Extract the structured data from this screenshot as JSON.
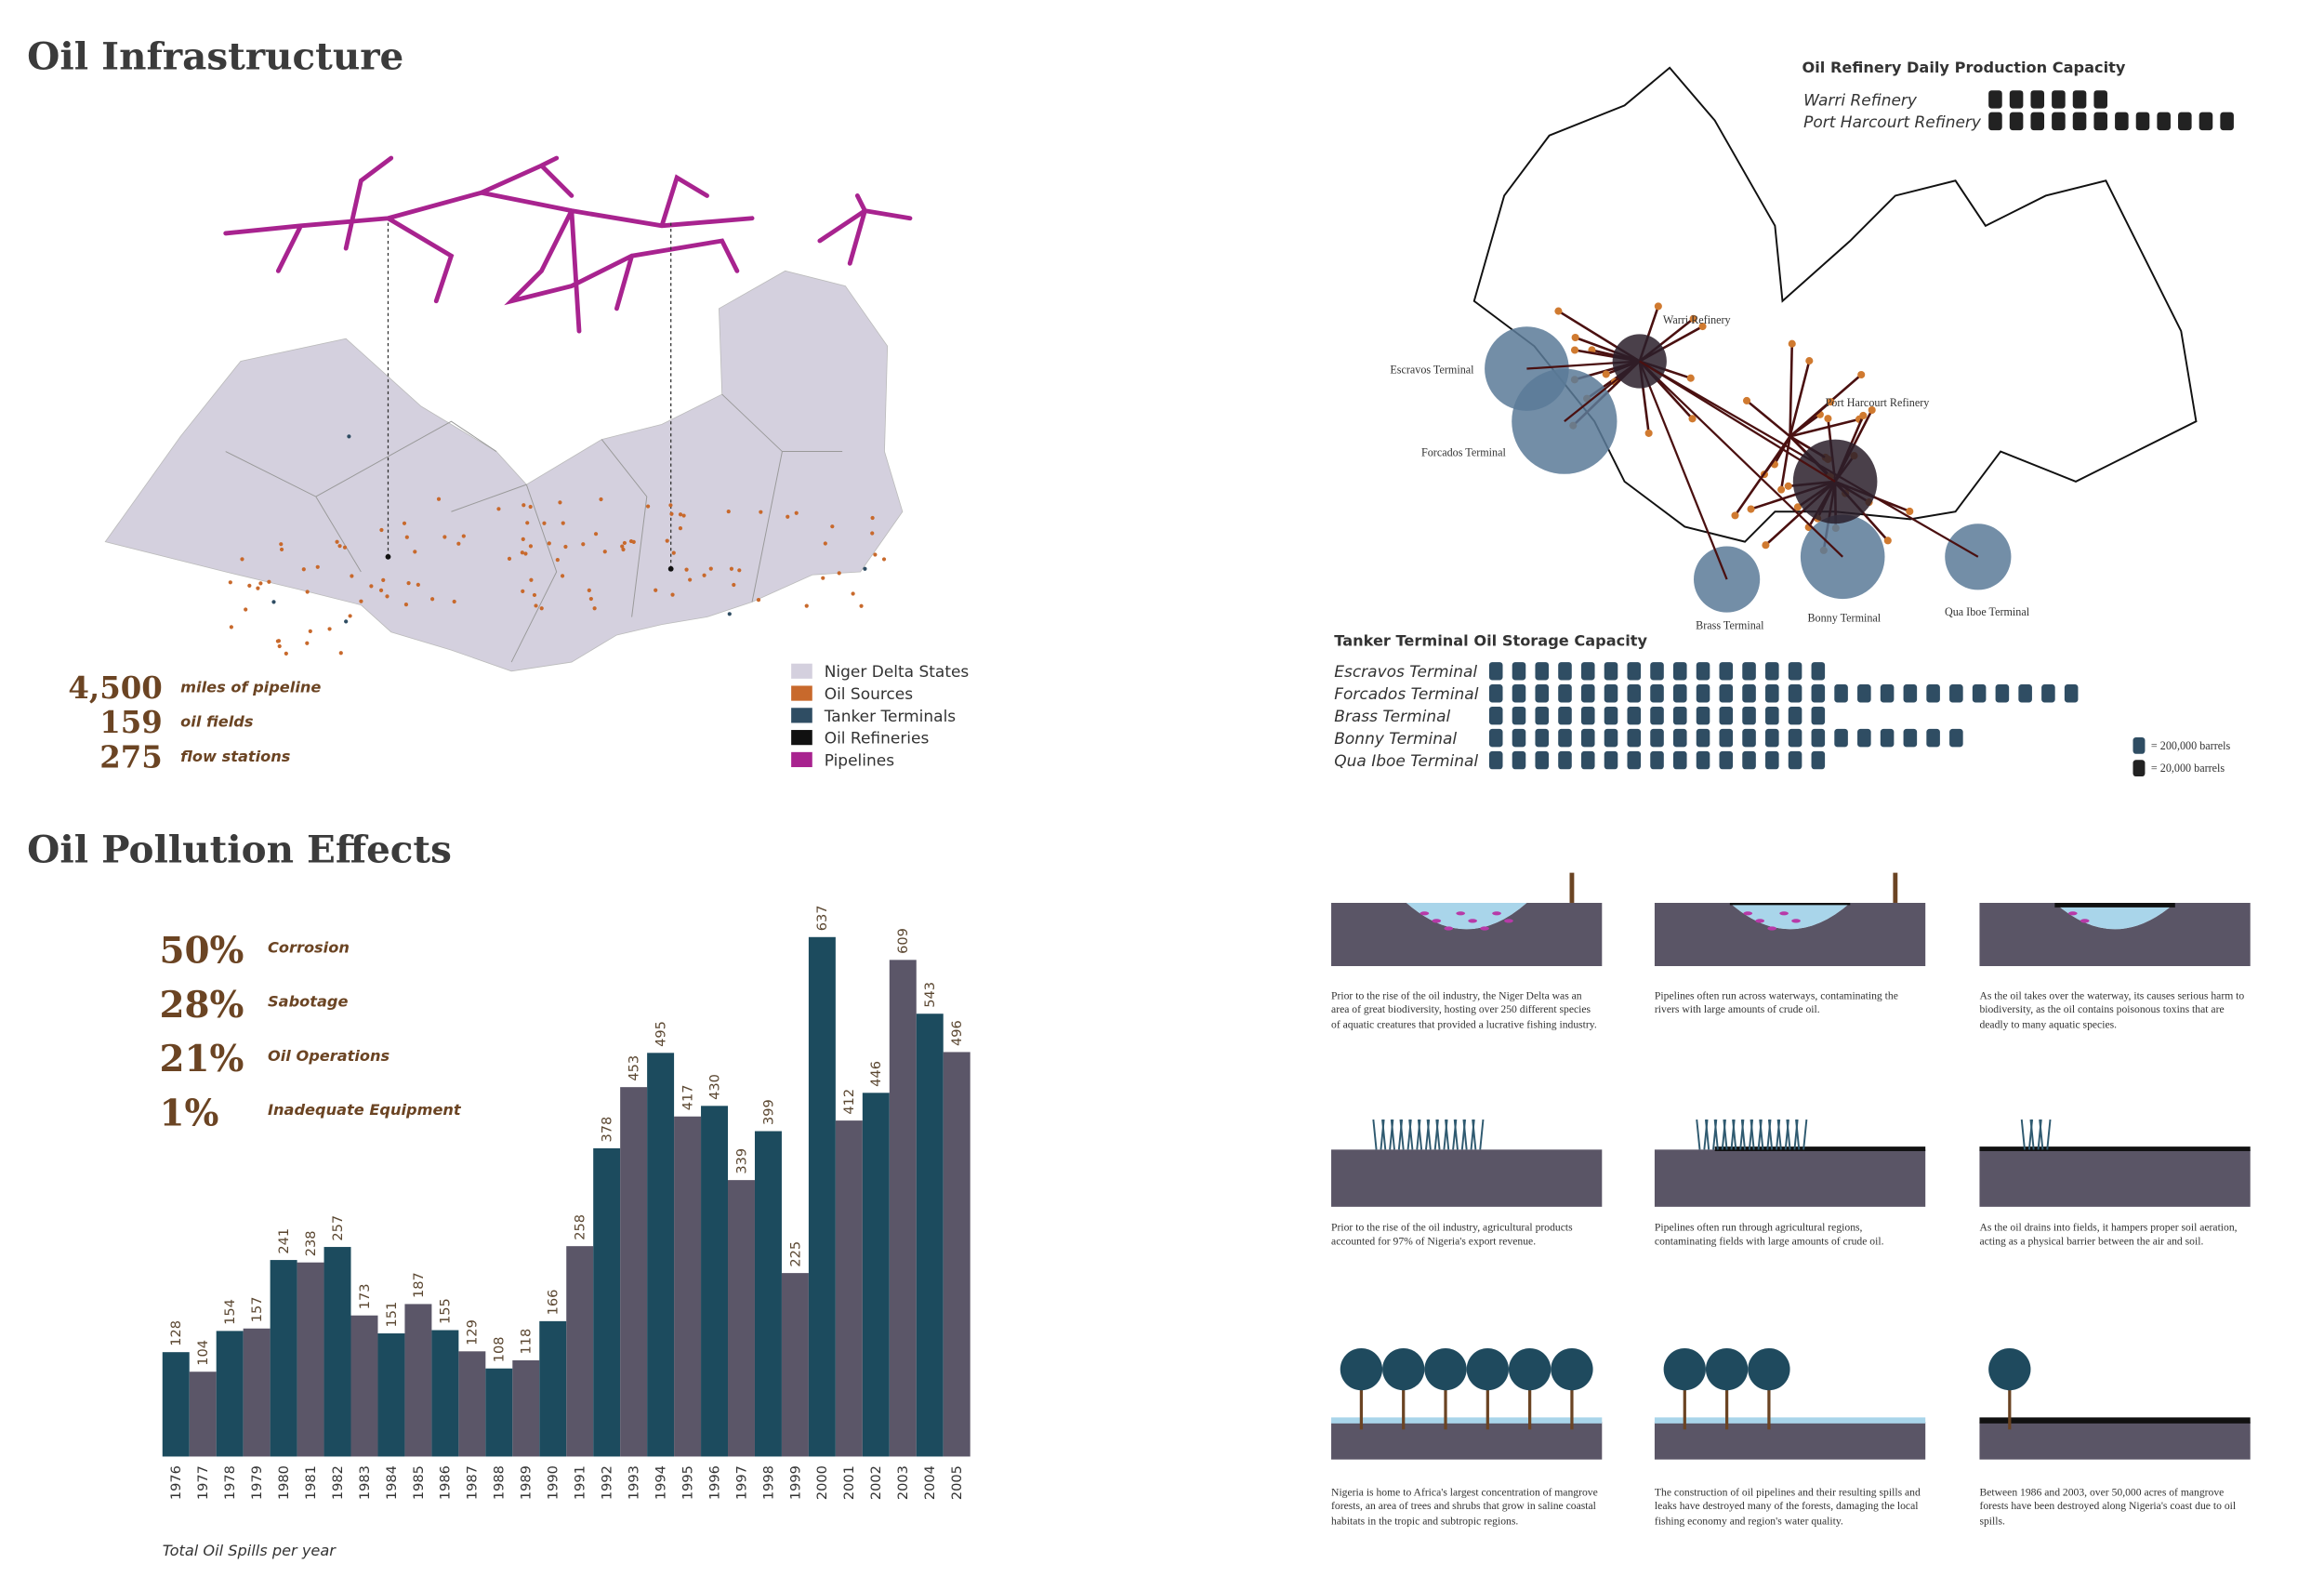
{
  "infrastructure": {
    "title": "Oil Infrastructure",
    "stats": [
      {
        "value": "4,500",
        "label": "miles of pipeline"
      },
      {
        "value": "159",
        "label": "oil fields"
      },
      {
        "value": "275",
        "label": "flow stations"
      }
    ],
    "legend": [
      {
        "name": "Niger Delta States",
        "color": "#d4d0de"
      },
      {
        "name": "Oil Sources",
        "color": "#c8692c"
      },
      {
        "name": "Tanker Terminals",
        "color": "#2f4d63"
      },
      {
        "name": "Oil Refineries",
        "color": "#111111"
      },
      {
        "name": "Pipelines",
        "color": "#a8238f"
      }
    ]
  },
  "refineries": {
    "title": "Oil Refinery Daily Production Capacity",
    "items": [
      {
        "name": "Warri Refinery",
        "icons": 6
      },
      {
        "name": "Port Harcourt Refinery",
        "icons": 12
      }
    ]
  },
  "terminals": {
    "title": "Tanker Terminal Oil Storage Capacity",
    "items": [
      {
        "name": "Escravos Terminal",
        "icons": 15
      },
      {
        "name": "Forcados Terminal",
        "icons": 26
      },
      {
        "name": "Brass Terminal",
        "icons": 15
      },
      {
        "name": "Bonny Terminal",
        "icons": 21
      },
      {
        "name": "Qua Iboe Terminal",
        "icons": 15
      }
    ],
    "key": [
      {
        "label": "= 200,000 barrels",
        "color": "#2f4d63"
      },
      {
        "label": "= 20,000 barrels",
        "color": "#222222"
      }
    ]
  },
  "map_labels": [
    "Warri Refinery",
    "Port Harcourt Refinery",
    "Escravos Terminal",
    "Forcados Terminal",
    "Brass Terminal",
    "Bonny Terminal",
    "Qua Iboe Terminal"
  ],
  "pollution": {
    "title": "Oil Pollution Effects",
    "causes": [
      {
        "value": "50%",
        "label": "Corrosion"
      },
      {
        "value": "28%",
        "label": "Sabotage"
      },
      {
        "value": "21%",
        "label": "Oil Operations"
      },
      {
        "value": "1%",
        "label": "Inadequate Equipment"
      }
    ]
  },
  "chart_data": {
    "type": "bar",
    "x_label": "Total Oil Spills per year",
    "categories": [
      "1976",
      "1977",
      "1978",
      "1979",
      "1980",
      "1981",
      "1982",
      "1983",
      "1984",
      "1985",
      "1986",
      "1987",
      "1988",
      "1989",
      "1990",
      "1991",
      "1992",
      "1993",
      "1994",
      "1995",
      "1996",
      "1997",
      "1998",
      "1999",
      "2000",
      "2001",
      "2002",
      "2003",
      "2004",
      "2005"
    ],
    "values": [
      128,
      104,
      154,
      157,
      241,
      238,
      257,
      173,
      151,
      187,
      155,
      129,
      108,
      118,
      166,
      258,
      378,
      453,
      495,
      417,
      430,
      339,
      399,
      225,
      637,
      412,
      446,
      609,
      543,
      496
    ],
    "colors": [
      "#1c4b5e",
      "#5b5668"
    ]
  },
  "effects": {
    "captions": [
      "Prior to the rise of the oil industry, the Niger Delta was an area of great biodiversity, hosting over 250 different species of  aquatic creatures that provided a lucrative fishing industry.",
      "Pipelines often run across waterways, contaminating the rivers with large amounts of crude oil.",
      "As the oil takes over the waterway, its causes serious harm to biodiversity, as the oil contains poisonous toxins that are deadly to many aquatic species.",
      "Prior to the rise of the oil industry, agricultural products accounted for 97% of Nigeria's export revenue.",
      "Pipelines often run through agricultural regions, contaminating fields with large amounts of crude oil.",
      "As the oil drains into fields, it hampers proper soil aeration, acting as a physical barrier between the air and soil.",
      "Nigeria is home to Africa's largest concentration of mangrove forests, an area of trees and shrubs that grow in saline coastal habitats in the tropic and subtropic regions.",
      "The construction of oil pipelines and their resulting spills and leaks have destroyed many of the forests, damaging the local fishing economy and region's water quality.",
      "Between 1986 and 2003, over 50,000 acres of mangrove forests have been destroyed along Nigeria's coast due to oil spills."
    ]
  }
}
